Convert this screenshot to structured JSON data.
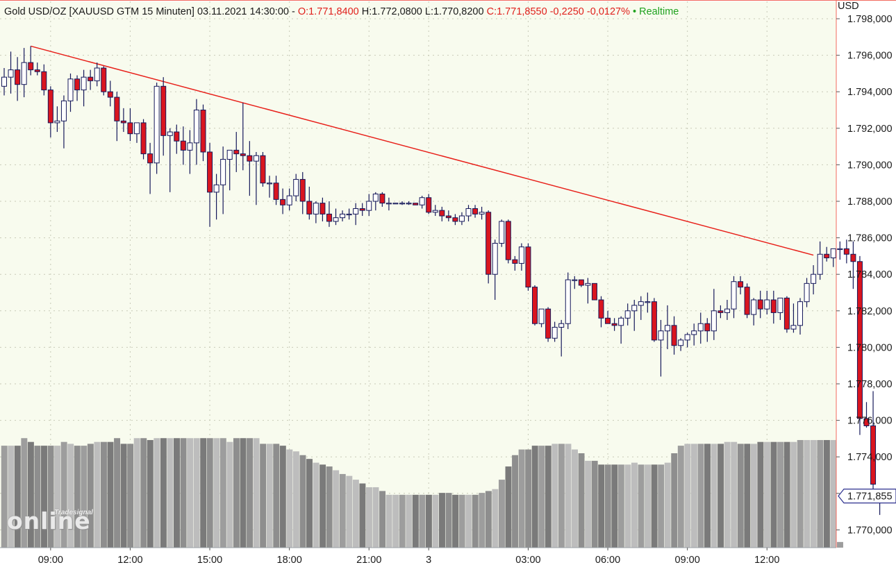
{
  "header": {
    "instrument": "Gold USD/OZ [XAUUSD GTM 15 Minuten] 03.11.2021 14:30:00 -",
    "open": "O:1.771,8400",
    "high": "H:1.772,0800",
    "low": "L:1.770,8200",
    "close_change": "C:1.771,8550 -0,2250 -0,0127%",
    "realtime": "• Realtime"
  },
  "axis": {
    "unit": "USD",
    "current_price_label": "1.771,855"
  },
  "logo": {
    "big": "online",
    "small": "Tradesignal"
  },
  "colors": {
    "background": "#f8fbee",
    "up_body": "#ffffff",
    "down_body": "#d9151f",
    "candle_outline": "#15185a",
    "trendline": "#e8201a",
    "grid": "#c7cab7"
  },
  "chart_data": {
    "type": "candlestick",
    "interval": "15 Minuten",
    "y_range": [
      1769.0,
      1798.5
    ],
    "y_ticks": [
      1770,
      1772,
      1774,
      1776,
      1778,
      1780,
      1782,
      1784,
      1786,
      1788,
      1790,
      1792,
      1794,
      1796,
      1798
    ],
    "y_tick_labels": [
      "1.770,000",
      "1.772,000",
      "1.774,000",
      "1.776,000",
      "1.778,000",
      "1.780,000",
      "1.782,000",
      "1.784,000",
      "1.786,000",
      "1.788,000",
      "1.790,000",
      "1.792,000",
      "1.794,000",
      "1.796,000",
      "1.798,000"
    ],
    "x_tick_labels": [
      "09:00",
      "12:00",
      "15:00",
      "18:00",
      "21:00",
      "3",
      "03:00",
      "06:00",
      "09:00",
      "12:00"
    ],
    "x_tick_candle_index": [
      7,
      19,
      31,
      43,
      55,
      64,
      79,
      91,
      103,
      115
    ],
    "trendline": [
      [
        4,
        1796.5
      ],
      [
        122,
        1785.05
      ]
    ],
    "candles": [
      [
        1794.3,
        1795.3,
        1793.8,
        1794.8
      ],
      [
        1794.8,
        1796.2,
        1793.9,
        1795.2
      ],
      [
        1795.2,
        1795.9,
        1793.5,
        1794.4
      ],
      [
        1794.4,
        1796.4,
        1793.7,
        1795.6
      ],
      [
        1795.6,
        1796.5,
        1794.9,
        1795.2
      ],
      [
        1795.2,
        1795.6,
        1794.9,
        1795.1
      ],
      [
        1795.1,
        1795.5,
        1793.8,
        1794.1
      ],
      [
        1794.1,
        1794.3,
        1791.5,
        1792.3
      ],
      [
        1792.3,
        1793.2,
        1791.8,
        1792.4
      ],
      [
        1792.4,
        1793.8,
        1790.9,
        1793.5
      ],
      [
        1793.5,
        1795.0,
        1792.9,
        1794.7
      ],
      [
        1794.7,
        1794.9,
        1793.5,
        1794.1
      ],
      [
        1794.1,
        1795.2,
        1793.2,
        1794.8
      ],
      [
        1794.8,
        1795.2,
        1794.1,
        1794.6
      ],
      [
        1794.6,
        1795.6,
        1794.3,
        1795.3
      ],
      [
        1795.3,
        1795.4,
        1793.8,
        1794.0
      ],
      [
        1794.0,
        1794.6,
        1793.2,
        1793.7
      ],
      [
        1793.7,
        1794.0,
        1791.3,
        1792.4
      ],
      [
        1792.4,
        1793.1,
        1791.8,
        1792.3
      ],
      [
        1792.3,
        1793.1,
        1791.3,
        1791.7
      ],
      [
        1791.7,
        1792.3,
        1791.2,
        1792.3
      ],
      [
        1792.3,
        1792.5,
        1790.3,
        1790.6
      ],
      [
        1790.6,
        1791.2,
        1788.4,
        1790.1
      ],
      [
        1790.1,
        1794.5,
        1789.5,
        1794.3
      ],
      [
        1794.3,
        1794.8,
        1790.5,
        1791.6
      ],
      [
        1791.6,
        1792.0,
        1788.5,
        1791.8
      ],
      [
        1791.8,
        1792.2,
        1790.6,
        1791.3
      ],
      [
        1791.3,
        1792.1,
        1790.0,
        1790.8
      ],
      [
        1790.8,
        1791.9,
        1789.5,
        1791.2
      ],
      [
        1791.2,
        1793.6,
        1790.0,
        1793.0
      ],
      [
        1793.0,
        1793.3,
        1790.2,
        1790.7
      ],
      [
        1790.7,
        1791.2,
        1786.6,
        1788.5
      ],
      [
        1788.5,
        1789.5,
        1787.0,
        1788.9
      ],
      [
        1788.9,
        1791.0,
        1787.3,
        1790.3
      ],
      [
        1790.3,
        1790.8,
        1788.6,
        1790.8
      ],
      [
        1790.8,
        1791.8,
        1789.6,
        1790.6
      ],
      [
        1790.6,
        1793.4,
        1789.7,
        1790.5
      ],
      [
        1790.5,
        1791.3,
        1788.3,
        1790.2
      ],
      [
        1790.2,
        1790.7,
        1787.8,
        1790.5
      ],
      [
        1790.5,
        1790.7,
        1788.8,
        1789.0
      ],
      [
        1789.0,
        1789.4,
        1788.2,
        1789.0
      ],
      [
        1789.0,
        1789.4,
        1787.8,
        1788.1
      ],
      [
        1788.1,
        1788.7,
        1787.3,
        1787.8
      ],
      [
        1787.8,
        1788.7,
        1787.5,
        1788.3
      ],
      [
        1788.3,
        1789.5,
        1788.0,
        1789.2
      ],
      [
        1789.2,
        1789.6,
        1787.3,
        1788.0
      ],
      [
        1788.0,
        1788.8,
        1787.0,
        1787.3
      ],
      [
        1787.3,
        1788.0,
        1786.8,
        1787.9
      ],
      [
        1787.9,
        1788.2,
        1786.9,
        1787.3
      ],
      [
        1787.3,
        1788.0,
        1786.6,
        1786.9
      ],
      [
        1786.9,
        1787.6,
        1786.7,
        1787.1
      ],
      [
        1787.1,
        1787.5,
        1786.9,
        1787.3
      ],
      [
        1787.3,
        1787.6,
        1787.0,
        1787.3
      ],
      [
        1787.3,
        1787.9,
        1786.7,
        1787.6
      ],
      [
        1787.6,
        1787.9,
        1787.2,
        1787.5
      ],
      [
        1787.5,
        1788.4,
        1787.2,
        1788.0
      ],
      [
        1788.0,
        1788.5,
        1787.5,
        1788.4
      ],
      [
        1788.4,
        1788.5,
        1787.7,
        1787.9
      ],
      [
        1787.9,
        1788.2,
        1787.5,
        1787.9
      ],
      [
        1787.9,
        1787.9,
        1787.9,
        1787.9
      ],
      [
        1787.9,
        1788.0,
        1787.8,
        1787.9
      ],
      [
        1787.9,
        1788.0,
        1787.8,
        1787.9
      ],
      [
        1787.9,
        1787.9,
        1787.8,
        1787.8
      ],
      [
        1787.8,
        1788.3,
        1787.6,
        1788.2
      ],
      [
        1788.2,
        1788.4,
        1787.3,
        1787.4
      ],
      [
        1787.4,
        1787.8,
        1787.2,
        1787.5
      ],
      [
        1787.5,
        1787.7,
        1786.9,
        1787.2
      ],
      [
        1787.2,
        1787.5,
        1786.9,
        1787.1
      ],
      [
        1787.1,
        1787.3,
        1786.7,
        1786.9
      ],
      [
        1786.9,
        1787.4,
        1786.7,
        1787.2
      ],
      [
        1787.2,
        1787.8,
        1786.9,
        1787.6
      ],
      [
        1787.6,
        1787.8,
        1787.1,
        1787.3
      ],
      [
        1787.3,
        1787.7,
        1787.0,
        1787.4
      ],
      [
        1787.4,
        1787.5,
        1783.5,
        1784.0
      ],
      [
        1784.0,
        1785.9,
        1782.6,
        1785.7
      ],
      [
        1785.7,
        1787.0,
        1785.5,
        1786.9
      ],
      [
        1786.9,
        1787.0,
        1784.6,
        1784.8
      ],
      [
        1784.8,
        1785.0,
        1784.2,
        1784.6
      ],
      [
        1784.6,
        1785.7,
        1784.2,
        1785.5
      ],
      [
        1785.5,
        1785.7,
        1783.1,
        1783.3
      ],
      [
        1783.3,
        1783.4,
        1781.2,
        1781.3
      ],
      [
        1781.3,
        1782.0,
        1781.1,
        1782.1
      ],
      [
        1782.1,
        1782.2,
        1780.3,
        1780.5
      ],
      [
        1780.5,
        1781.4,
        1780.3,
        1781.1
      ],
      [
        1781.1,
        1781.5,
        1779.5,
        1781.3
      ],
      [
        1781.3,
        1784.1,
        1781.0,
        1783.7
      ],
      [
        1783.7,
        1783.9,
        1783.2,
        1783.7
      ],
      [
        1783.7,
        1783.7,
        1783.3,
        1783.4
      ],
      [
        1783.4,
        1783.8,
        1782.4,
        1783.5
      ],
      [
        1783.5,
        1783.5,
        1782.6,
        1782.6
      ],
      [
        1782.6,
        1782.8,
        1781.1,
        1781.6
      ],
      [
        1781.6,
        1782.0,
        1781.3,
        1781.3
      ],
      [
        1781.3,
        1781.6,
        1780.9,
        1781.2
      ],
      [
        1781.2,
        1781.7,
        1780.2,
        1781.6
      ],
      [
        1781.6,
        1782.4,
        1781.2,
        1782.0
      ],
      [
        1782.0,
        1782.6,
        1780.9,
        1782.3
      ],
      [
        1782.3,
        1782.8,
        1781.5,
        1782.5
      ],
      [
        1782.5,
        1783.0,
        1781.9,
        1782.5
      ],
      [
        1782.5,
        1782.7,
        1780.3,
        1780.4
      ],
      [
        1780.4,
        1781.5,
        1778.4,
        1780.9
      ],
      [
        1780.9,
        1782.3,
        1779.9,
        1781.2
      ],
      [
        1781.2,
        1781.7,
        1779.6,
        1780.1
      ],
      [
        1780.1,
        1780.5,
        1779.8,
        1780.4
      ],
      [
        1780.4,
        1780.8,
        1780.0,
        1780.7
      ],
      [
        1780.7,
        1781.3,
        1780.1,
        1780.9
      ],
      [
        1780.9,
        1781.9,
        1780.2,
        1781.3
      ],
      [
        1781.3,
        1781.6,
        1780.3,
        1780.9
      ],
      [
        1780.9,
        1783.2,
        1780.4,
        1782.0
      ],
      [
        1782.0,
        1782.3,
        1781.6,
        1781.9
      ],
      [
        1781.9,
        1782.6,
        1781.5,
        1782.1
      ],
      [
        1782.1,
        1783.9,
        1781.6,
        1783.6
      ],
      [
        1783.6,
        1783.9,
        1782.9,
        1783.3
      ],
      [
        1783.3,
        1783.5,
        1781.6,
        1781.8
      ],
      [
        1781.8,
        1782.7,
        1781.2,
        1782.6
      ],
      [
        1782.6,
        1783.1,
        1781.6,
        1782.1
      ],
      [
        1782.1,
        1783.1,
        1781.8,
        1782.6
      ],
      [
        1782.6,
        1783.1,
        1781.3,
        1781.9
      ],
      [
        1781.9,
        1782.6,
        1781.5,
        1782.7
      ],
      [
        1782.7,
        1782.8,
        1780.8,
        1781.0
      ],
      [
        1781.0,
        1782.4,
        1780.8,
        1781.2
      ],
      [
        1781.2,
        1782.7,
        1780.7,
        1782.5
      ],
      [
        1782.5,
        1783.8,
        1782.2,
        1783.5
      ],
      [
        1783.5,
        1784.5,
        1782.9,
        1784.0
      ],
      [
        1784.0,
        1785.8,
        1783.7,
        1785.1
      ],
      [
        1785.1,
        1785.5,
        1784.7,
        1784.9
      ],
      [
        1784.9,
        1785.4,
        1784.4,
        1785.4
      ],
      [
        1785.4,
        1785.8,
        1784.8,
        1785.4
      ],
      [
        1785.4,
        1785.9,
        1784.6,
        1785.1
      ],
      [
        1785.1,
        1785.8,
        1783.2,
        1784.7
      ],
      [
        1784.7,
        1785.0,
        1775.2,
        1776.1
      ],
      [
        1776.1,
        1777.0,
        1775.6,
        1775.7
      ],
      [
        1775.7,
        1777.6,
        1772.1,
        1772.5
      ],
      [
        1771.84,
        1772.08,
        1770.82,
        1771.855
      ]
    ],
    "volume": [
      54,
      54,
      54,
      58,
      56,
      54,
      54,
      54,
      54,
      56,
      55,
      54,
      54,
      55,
      56,
      56,
      56,
      58,
      55,
      55,
      58,
      58,
      57,
      58,
      58,
      58,
      58,
      58,
      58,
      58,
      58,
      58,
      58,
      58,
      56,
      58,
      58,
      58,
      58,
      55,
      55,
      55,
      54,
      52,
      51,
      49,
      47,
      45,
      44,
      43,
      41,
      39,
      38,
      36,
      34,
      32,
      32,
      30,
      28,
      28,
      28,
      28,
      28,
      28,
      28,
      28,
      29,
      29,
      28,
      28,
      28,
      28,
      29,
      30,
      31,
      36,
      43,
      49,
      52,
      52,
      54,
      54,
      54,
      55,
      55,
      55,
      52,
      50,
      46,
      46,
      44,
      44,
      44,
      44,
      44,
      45,
      44,
      44,
      44,
      44,
      45,
      50,
      54,
      55,
      55,
      55,
      55,
      55,
      55,
      56,
      56,
      55,
      55,
      55,
      56,
      56,
      56,
      56,
      56,
      56,
      57,
      57,
      57,
      57,
      57,
      57,
      3
    ]
  }
}
